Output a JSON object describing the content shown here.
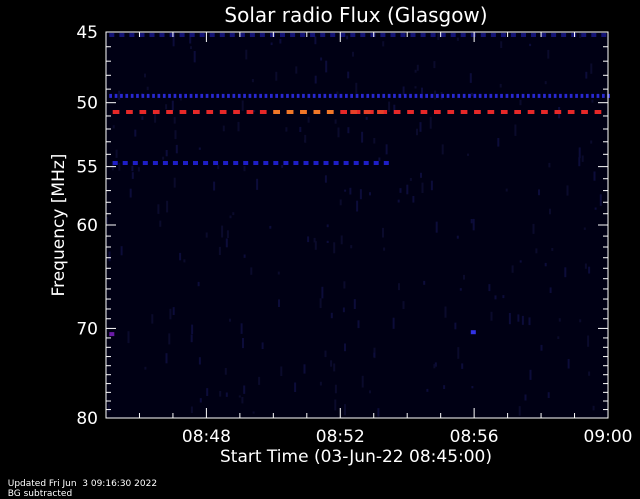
{
  "chart_data": {
    "type": "heatmap",
    "title": "Solar radio Flux (Glasgow)",
    "xlabel": "Start Time (03-Jun-22 08:45:00)",
    "ylabel": "Frequency [MHz]",
    "x_range_minutes": [
      0,
      15
    ],
    "x_ticks": [
      {
        "minute": 3,
        "label": "08:48"
      },
      {
        "minute": 7,
        "label": "08:52"
      },
      {
        "minute": 11,
        "label": "08:56"
      },
      {
        "minute": 15,
        "label": "09:00"
      }
    ],
    "y_range": [
      45,
      80
    ],
    "y_scale": "log",
    "y_ticks": [
      45,
      50,
      55,
      60,
      70,
      80
    ],
    "y_minor_ticks": [
      46,
      47,
      48,
      49,
      51,
      52,
      53,
      54,
      56,
      57,
      58,
      59,
      61,
      62,
      63,
      64,
      65,
      66,
      67,
      68,
      69,
      71,
      72,
      73,
      74,
      75,
      76,
      77,
      78,
      79
    ],
    "grid": false,
    "bands": [
      {
        "freq": 45.2,
        "color": "#141478",
        "x_start": 0.1,
        "x_end": 15,
        "dash": 0.15
      },
      {
        "freq": 49.5,
        "color": "#2828d2",
        "x_start": 0.1,
        "x_end": 15,
        "dash": 0.08
      },
      {
        "freq": 50.7,
        "color": "#e62828",
        "x_start": 0.2,
        "x_end": 15,
        "dash": 0.2
      },
      {
        "freq": 54.7,
        "color": "#1e1ec8",
        "x_start": 0.2,
        "x_end": 8.5,
        "dash": 0.15
      },
      {
        "freq": 70.6,
        "color": "#6a1aa6",
        "x_start": 0.1,
        "x_end": 0.25,
        "dash": 0.15
      },
      {
        "freq": 70.4,
        "color": "#3232e6",
        "x_start": 10.9,
        "x_end": 11.05,
        "dash": 0.15
      }
    ],
    "hot_segments": [
      {
        "freq": 50.7,
        "x_start": 5.0,
        "x_end": 6.8,
        "color": "#f07828"
      },
      {
        "freq": 50.7,
        "x_start": 7.3,
        "x_end": 8.3,
        "color": "#e64028"
      }
    ]
  },
  "footer": {
    "updated": "Updated Fri Jun  3 09:16:30 2022",
    "note": "BG subtracted"
  }
}
